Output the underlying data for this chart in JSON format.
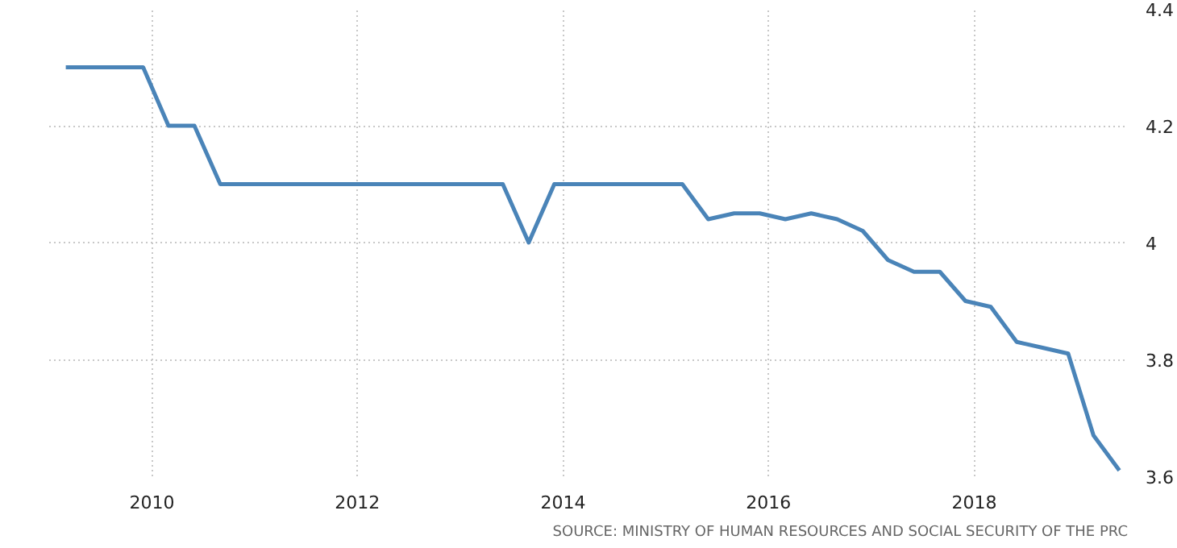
{
  "chart_data": {
    "type": "line",
    "x": [
      "2009-03",
      "2009-06",
      "2009-09",
      "2009-12",
      "2010-03",
      "2010-06",
      "2010-09",
      "2010-12",
      "2011-03",
      "2011-06",
      "2011-09",
      "2011-12",
      "2012-03",
      "2012-06",
      "2012-09",
      "2012-12",
      "2013-03",
      "2013-06",
      "2013-09",
      "2013-12",
      "2014-03",
      "2014-06",
      "2014-09",
      "2014-12",
      "2015-03",
      "2015-06",
      "2015-09",
      "2015-12",
      "2016-03",
      "2016-06",
      "2016-09",
      "2016-12",
      "2017-03",
      "2017-06",
      "2017-09",
      "2017-12",
      "2018-03",
      "2018-06",
      "2018-09",
      "2018-12",
      "2019-03",
      "2019-06"
    ],
    "series": [
      {
        "color": "#4a84b8",
        "values": [
          4.3,
          4.3,
          4.3,
          4.3,
          4.2,
          4.2,
          4.1,
          4.1,
          4.1,
          4.1,
          4.1,
          4.1,
          4.1,
          4.1,
          4.1,
          4.1,
          4.1,
          4.1,
          4.0,
          4.1,
          4.1,
          4.1,
          4.1,
          4.1,
          4.1,
          4.04,
          4.05,
          4.05,
          4.04,
          4.05,
          4.04,
          4.02,
          3.97,
          3.95,
          3.95,
          3.9,
          3.89,
          3.83,
          3.82,
          3.81,
          3.67,
          3.61
        ]
      }
    ],
    "xlim": [
      "2009-01",
      "2019-07"
    ],
    "ylim": [
      3.6,
      4.4
    ],
    "xticks": [
      "2010",
      "2012",
      "2014",
      "2016",
      "2018"
    ],
    "yticks": [
      3.6,
      3.8,
      {
        "value": 4,
        "label": "4"
      },
      4.2,
      4.4
    ],
    "grid": true,
    "line_style": "solid",
    "annotations": [
      "SOURCE: MINISTRY OF HUMAN RESOURCES AND SOCIAL SECURITY OF THE PRC"
    ]
  }
}
